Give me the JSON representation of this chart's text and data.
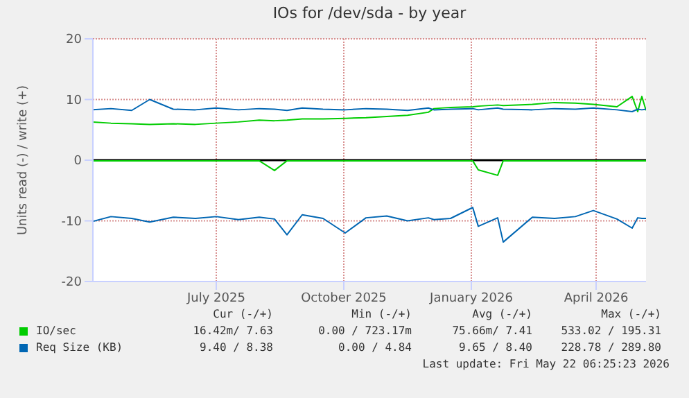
{
  "chart_data": {
    "type": "line",
    "title": "IOs for /dev/sda - by year",
    "ylabel": "Units read (-) / write (+)",
    "x": [
      "2025-04-18",
      "2025-05-01",
      "2025-05-16",
      "2025-05-29",
      "2025-06-15",
      "2025-07-01",
      "2025-07-16",
      "2025-08-01",
      "2025-08-16",
      "2025-08-27",
      "2025-09-05",
      "2025-09-16",
      "2025-10-01",
      "2025-10-17",
      "2025-11-01",
      "2025-11-16",
      "2025-12-01",
      "2025-12-16",
      "2025-12-20",
      "2026-01-01",
      "2026-01-17",
      "2026-01-21",
      "2026-02-04",
      "2026-02-08",
      "2026-03-01",
      "2026-03-17",
      "2026-04-01",
      "2026-04-14",
      "2026-05-01",
      "2026-05-12",
      "2026-05-16",
      "2026-05-19",
      "2026-05-22"
    ],
    "series": [
      {
        "name": "IO/sec",
        "color": "#00cc00",
        "values": [
          6.3,
          6.1,
          6.0,
          5.9,
          6.0,
          5.9,
          6.1,
          6.3,
          6.6,
          6.5,
          6.6,
          6.8,
          6.8,
          6.9,
          7.0,
          7.2,
          7.4,
          7.9,
          8.5,
          8.7,
          8.8,
          8.9,
          9.1,
          9.0,
          9.2,
          9.5,
          9.4,
          9.2,
          8.8,
          10.5,
          8.0,
          10.5,
          8.2
        ]
      },
      {
        "color": "#00cc00",
        "values": [
          -0.1,
          -0.1,
          -0.1,
          -0.1,
          -0.1,
          -0.1,
          -0.1,
          -0.1,
          -0.1,
          -1.7,
          -0.1,
          -0.1,
          -0.1,
          -0.1,
          -0.1,
          -0.1,
          -0.1,
          -0.1,
          -0.1,
          -0.1,
          -0.1,
          -1.6,
          -2.5,
          -0.1,
          -0.1,
          -0.1,
          -0.1,
          -0.1,
          -0.1,
          -0.1,
          -0.1,
          -0.1,
          -0.1
        ]
      },
      {
        "name": "Req Size (KB)",
        "color": "#0066b3",
        "values": [
          8.3,
          8.5,
          8.2,
          10.0,
          8.4,
          8.3,
          8.6,
          8.3,
          8.5,
          8.4,
          8.2,
          8.6,
          8.4,
          8.3,
          8.5,
          8.4,
          8.2,
          8.6,
          8.3,
          8.4,
          8.5,
          8.3,
          8.6,
          8.4,
          8.3,
          8.5,
          8.4,
          8.6,
          8.3,
          8.0,
          8.4,
          8.3,
          8.4
        ]
      },
      {
        "color": "#0066b3",
        "values": [
          -10.1,
          -9.3,
          -9.6,
          -10.2,
          -9.4,
          -9.6,
          -9.3,
          -9.8,
          -9.4,
          -9.7,
          -12.3,
          -9.0,
          -9.6,
          -12.0,
          -9.5,
          -9.2,
          -10.0,
          -9.5,
          -9.8,
          -9.6,
          -7.8,
          -10.9,
          -9.5,
          -13.5,
          -9.4,
          -9.6,
          -9.3,
          -8.3,
          -9.7,
          -11.2,
          -9.5,
          -9.6,
          -9.6
        ]
      }
    ],
    "xlim": [
      "2025-04-18",
      "2026-05-22"
    ],
    "xticks": [
      {
        "value": "2025-07-16",
        "label": "July 2025"
      },
      {
        "value": "2025-10-16",
        "label": "October 2025"
      },
      {
        "value": "2026-01-16",
        "label": "January 2026"
      },
      {
        "value": "2026-04-16",
        "label": "April 2026"
      }
    ],
    "ylim": [
      -20,
      20
    ],
    "yticks": [
      -20,
      -10,
      0,
      10,
      20
    ],
    "grid": true,
    "legend": "bottom",
    "marker": "none",
    "line_style": "solid",
    "ref_lines": [
      {
        "axis": "y",
        "value": 0,
        "color": "#000000"
      }
    ],
    "annotations": [
      "Cur (-/+)",
      "Min (-/+)",
      "Avg (-/+)",
      "Max (-/+)",
      "16.42m/ 7.63",
      "0.00 / 723.17m",
      "75.66m/ 7.41",
      "533.02 / 195.31",
      "9.40 / 8.38",
      "0.00 / 4.84",
      "9.65 / 8.40",
      "228.78 / 289.80",
      "Last update: Fri May 22 06:25:23 2026"
    ]
  }
}
